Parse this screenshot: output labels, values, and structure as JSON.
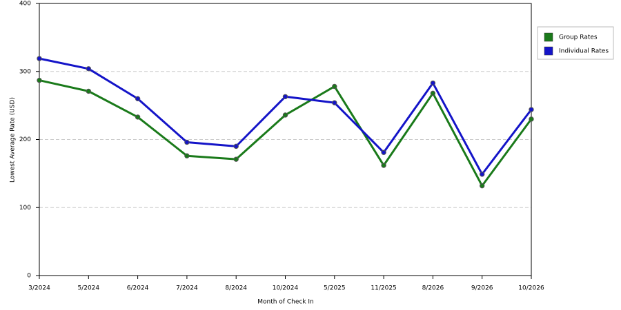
{
  "chart_data": {
    "type": "line",
    "x_label": "Month of Check In",
    "y_label": "Lowest Average Rate (USD)",
    "categories": [
      "3/2024",
      "5/2024",
      "6/2024",
      "7/2024",
      "8/2024",
      "10/2024",
      "5/2025",
      "11/2025",
      "8/2026",
      "9/2026",
      "10/2026"
    ],
    "series": [
      {
        "name": "Group Rates",
        "color": "#1a7a1a",
        "values": [
          287,
          271,
          233,
          176,
          171,
          236,
          278,
          162,
          268,
          132,
          230
        ]
      },
      {
        "name": "Individual Rates",
        "color": "#1414c8",
        "values": [
          319,
          304,
          260,
          196,
          190,
          263,
          254,
          181,
          283,
          149,
          244
        ]
      }
    ],
    "ylim": [
      0,
      400
    ],
    "yticks": [
      0,
      100,
      200,
      300,
      400
    ],
    "grid": true,
    "legend": "right"
  }
}
